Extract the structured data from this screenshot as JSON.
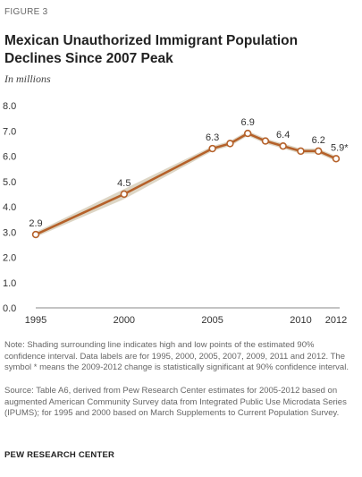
{
  "figure_label": "FIGURE 3",
  "title": "Mexican Unauthorized  Immigrant Population Declines Since 2007 Peak",
  "subtitle": "In millions",
  "note": "Note: Shading surrounding line indicates high and low points of the estimated 90% confidence interval. Data labels are for 1995, 2000, 2005, 2007, 2009, 2011 and 2012. The symbol * means the 2009-2012 change is statistically significant at 90% confidence interval.",
  "source": "Source: Table A6, derived from Pew Research Center estimates for 2005-2012 based on augmented American Community Survey data from Integrated Public Use Microdata Series (IPUMS); for 1995 and 2000 based on March Supplements to Current Population Survey.",
  "organization": "PEW RESEARCH CENTER",
  "colors": {
    "line": "#b5612a",
    "band": "#ddd6c5",
    "axis": "#888888",
    "text": "#333333"
  },
  "chart_data": {
    "type": "line",
    "title": "",
    "xlabel": "",
    "ylabel": "",
    "ylim": [
      0,
      8
    ],
    "xlim": [
      1995,
      2012
    ],
    "y_ticks": [
      "0.0",
      "1.0",
      "2.0",
      "3.0",
      "4.0",
      "5.0",
      "6.0",
      "7.0",
      "8.0"
    ],
    "x_ticks": [
      "1995",
      "2000",
      "2005",
      "2010",
      "2012"
    ],
    "grid": false,
    "series": [
      {
        "x": [
          1995,
          2000,
          2005,
          2006,
          2007,
          2008,
          2009,
          2010,
          2011,
          2012
        ],
        "y": [
          2.9,
          4.5,
          6.3,
          6.5,
          6.9,
          6.6,
          6.4,
          6.2,
          6.2,
          5.9
        ],
        "band_low": [
          2.8,
          4.3,
          6.2,
          6.4,
          6.8,
          6.5,
          6.3,
          6.1,
          6.1,
          5.8
        ],
        "band_high": [
          3.0,
          4.7,
          6.4,
          6.6,
          7.0,
          6.7,
          6.5,
          6.3,
          6.3,
          6.0
        ]
      }
    ],
    "data_labels": [
      {
        "x": 1995,
        "text": "2.9"
      },
      {
        "x": 2000,
        "text": "4.5"
      },
      {
        "x": 2005,
        "text": "6.3"
      },
      {
        "x": 2007,
        "text": "6.9"
      },
      {
        "x": 2009,
        "text": "6.4"
      },
      {
        "x": 2011,
        "text": "6.2"
      },
      {
        "x": 2012,
        "text": "5.9*"
      }
    ]
  }
}
